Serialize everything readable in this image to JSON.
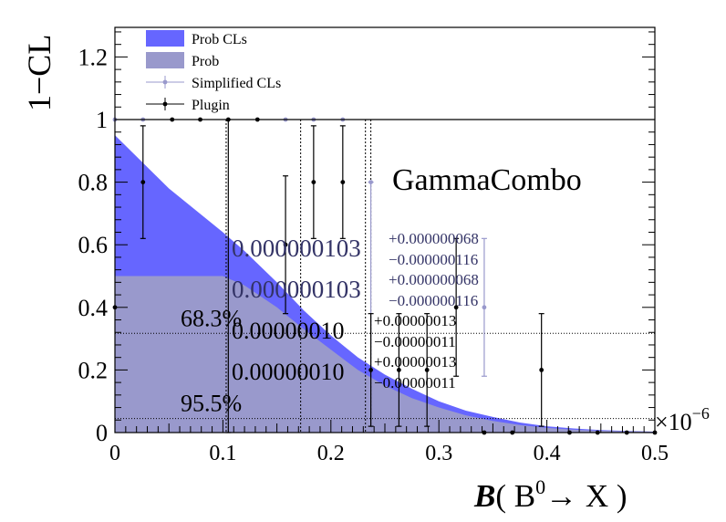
{
  "chart_data": {
    "type": "area",
    "title": "",
    "ylabel": "1−CL",
    "xlabel": {
      "symbol": "B",
      "text": "( B",
      "superscript": "0",
      "arrow": "→",
      "tail": " X )"
    },
    "x_exponent_label": "×10",
    "x_exponent_power": "−6",
    "xlim": [
      0,
      0.5
    ],
    "ylim": [
      0,
      1.3
    ],
    "x_ticks": [
      0,
      0.1,
      0.2,
      0.3,
      0.4,
      0.5
    ],
    "x_tick_labels": [
      "0",
      "0.1",
      "0.2",
      "0.3",
      "0.4",
      "0.5"
    ],
    "y_ticks_lower": [
      0,
      0.2,
      0.4,
      0.6,
      0.8,
      1
    ],
    "y_tick_labels_lower": [
      "0",
      "0.2",
      "0.4",
      "0.6",
      "0.8",
      "1"
    ],
    "y_ticks_upper": [
      1.2
    ],
    "y_tick_labels_upper": [
      "1.2"
    ],
    "watermark": "GammaCombo",
    "cl_lines": [
      {
        "label": "68.3%",
        "y": 0.317
      },
      {
        "label": "95.5%",
        "y": 0.045
      }
    ],
    "series": [
      {
        "name": "Prob CLs",
        "color": "#6666ff",
        "x": [
          0,
          0.05,
          0.1,
          0.12,
          0.15,
          0.175,
          0.2,
          0.225,
          0.25,
          0.275,
          0.3,
          0.325,
          0.35,
          0.375,
          0.4,
          0.425,
          0.45,
          0.475,
          0.5
        ],
        "y": [
          0.95,
          0.78,
          0.64,
          0.58,
          0.48,
          0.39,
          0.31,
          0.24,
          0.185,
          0.14,
          0.1,
          0.07,
          0.05,
          0.032,
          0.02,
          0.013,
          0.008,
          0.005,
          0.003
        ]
      },
      {
        "name": "Prob",
        "color": "#9999cc",
        "x": [
          0,
          0.1,
          0.12,
          0.15,
          0.175,
          0.2,
          0.225,
          0.25,
          0.275,
          0.3,
          0.325,
          0.35,
          0.375,
          0.4,
          0.425,
          0.45,
          0.475,
          0.5
        ],
        "y": [
          0.5,
          0.5,
          0.47,
          0.4,
          0.33,
          0.265,
          0.2,
          0.15,
          0.11,
          0.08,
          0.055,
          0.037,
          0.024,
          0.015,
          0.009,
          0.006,
          0.004,
          0.002
        ]
      },
      {
        "name": "Simplified CLs",
        "color": "#9999cc",
        "points": [
          {
            "x": 0,
            "y": 1.0
          },
          {
            "x": 0.026,
            "y": 1.0
          },
          {
            "x": 0.158,
            "y": 1.0
          },
          {
            "x": 0.184,
            "y": 1.0
          },
          {
            "x": 0.211,
            "y": 1.0
          },
          {
            "x": 0.237,
            "y": 0.8,
            "err_lo": 0.8,
            "err_hi": 0.0
          },
          {
            "x": 0.342,
            "y": 0.4,
            "err_lo": 0.22,
            "err_hi": 0.22
          }
        ]
      },
      {
        "name": "Plugin",
        "color": "#000000",
        "points": [
          {
            "x": 0,
            "y": 0.4
          },
          {
            "x": 0.026,
            "y": 0.8,
            "err_lo": 0.18,
            "err_hi": 0.18
          },
          {
            "x": 0.053,
            "y": 1.0
          },
          {
            "x": 0.079,
            "y": 1.0
          },
          {
            "x": 0.105,
            "y": 1.0,
            "err_lo": 1.0,
            "err_hi": 0.0
          },
          {
            "x": 0.132,
            "y": 1.0
          },
          {
            "x": 0.158,
            "y": 0.6,
            "err_lo": 0.22,
            "err_hi": 0.22
          },
          {
            "x": 0.184,
            "y": 0.8,
            "err_lo": 0.18,
            "err_hi": 0.18
          },
          {
            "x": 0.211,
            "y": 0.8,
            "err_lo": 0.18,
            "err_hi": 0.18
          },
          {
            "x": 0.237,
            "y": 0.2,
            "err_lo": 0.18,
            "err_hi": 0.18
          },
          {
            "x": 0.263,
            "y": 0.2,
            "err_lo": 0.18,
            "err_hi": 0.18
          },
          {
            "x": 0.289,
            "y": 0.2,
            "err_lo": 0.18,
            "err_hi": 0.18
          },
          {
            "x": 0.316,
            "y": 0.4,
            "err_lo": 0.22,
            "err_hi": 0.22
          },
          {
            "x": 0.342,
            "y": 0.0
          },
          {
            "x": 0.368,
            "y": 0.0
          },
          {
            "x": 0.395,
            "y": 0.2,
            "err_lo": 0.18,
            "err_hi": 0.18
          },
          {
            "x": 0.421,
            "y": 0.0
          },
          {
            "x": 0.447,
            "y": 0.0
          },
          {
            "x": 0.474,
            "y": 0.0
          },
          {
            "x": 0.5,
            "y": 0.0
          }
        ]
      }
    ],
    "vertical_lines": [
      {
        "x": 0.0,
        "color": "#000000"
      },
      {
        "x": 0.103,
        "color": "#000000"
      },
      {
        "x": 0.172,
        "color": "#000000"
      },
      {
        "x": 0.232,
        "color": "#000000"
      },
      {
        "x": 0.237,
        "color": "#000000"
      }
    ],
    "annotations": [
      {
        "value": "0.000000103",
        "up": "+0.000000068",
        "down": "−0.000000116",
        "color": "#333366"
      },
      {
        "value": "0.000000103",
        "up": "+0.000000068",
        "down": "−0.000000116",
        "color": "#333366"
      },
      {
        "value": "0.00000010",
        "up": "+0.00000013",
        "down": "−0.00000011",
        "color": "#000000"
      },
      {
        "value": "0.00000010",
        "up": "+0.00000013",
        "down": "−0.00000011",
        "color": "#000000"
      }
    ]
  }
}
